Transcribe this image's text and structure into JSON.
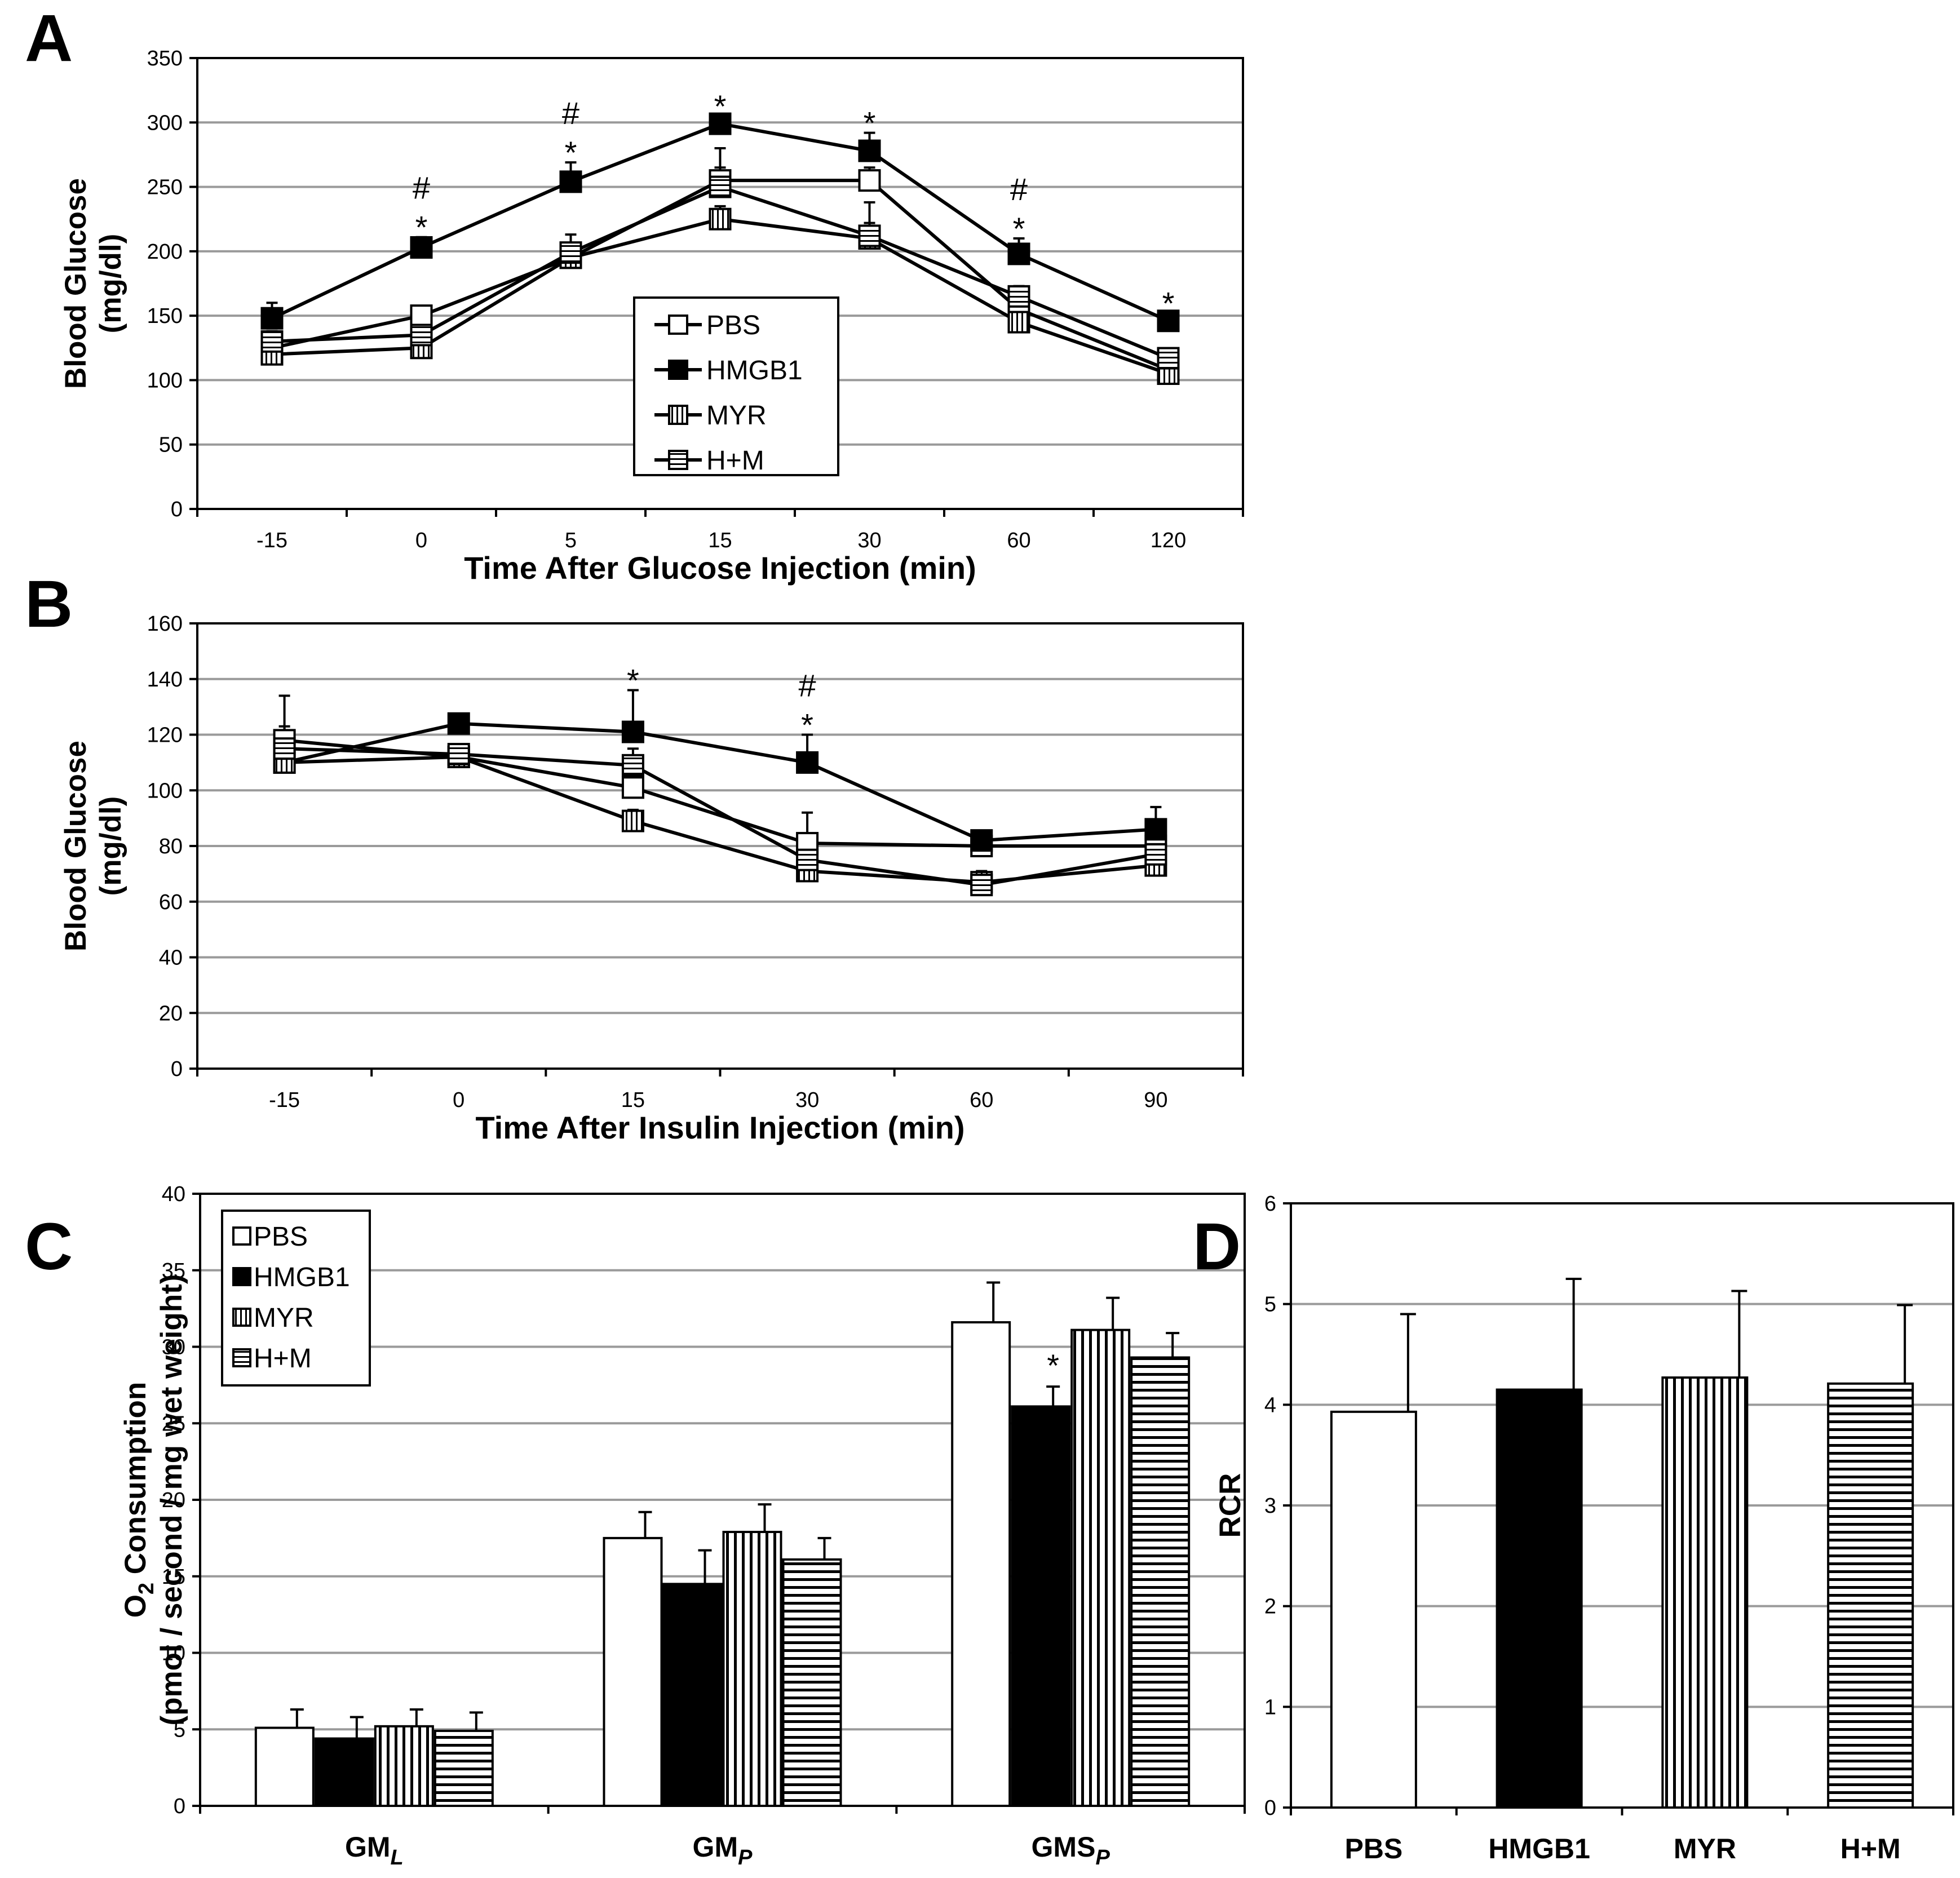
{
  "figure": {
    "panels": [
      "A",
      "B",
      "C",
      "D"
    ]
  },
  "chart_data": [
    {
      "panel": "A",
      "type": "line",
      "xlabel": "Time After Glucose Injection (min)",
      "ylabel_lines": [
        "Blood Glucose",
        "(mg/dl)"
      ],
      "categories": [
        "-15",
        "0",
        "5",
        "15",
        "30",
        "60",
        "120"
      ],
      "ylim": [
        0,
        350
      ],
      "yticks": [
        0,
        50,
        100,
        150,
        200,
        250,
        300,
        350
      ],
      "grid": true,
      "legend": [
        "PBS",
        "HMGB1",
        "MYR",
        "H+M"
      ],
      "series": [
        {
          "name": "PBS",
          "marker": "open",
          "values": [
            125,
            150,
            195,
            255,
            255,
            155,
            108
          ],
          "errors": [
            8,
            6,
            10,
            10,
            10,
            10,
            6
          ]
        },
        {
          "name": "HMGB1",
          "marker": "filled",
          "values": [
            148,
            203,
            254,
            299,
            278,
            198,
            146
          ],
          "errors": [
            12,
            8,
            15,
            6,
            14,
            12,
            6
          ]
        },
        {
          "name": "MYR",
          "marker": "vstripe",
          "values": [
            120,
            125,
            195,
            225,
            210,
            145,
            105
          ],
          "errors": [
            6,
            6,
            8,
            10,
            28,
            8,
            6
          ]
        },
        {
          "name": "H+M",
          "marker": "hstripe",
          "values": [
            130,
            135,
            199,
            250,
            212,
            165,
            117
          ],
          "errors": [
            8,
            8,
            14,
            30,
            10,
            8,
            6
          ]
        }
      ],
      "annotations": [
        {
          "x": "0",
          "labels": [
            "#",
            "*"
          ]
        },
        {
          "x": "5",
          "labels": [
            "#",
            "*"
          ]
        },
        {
          "x": "15",
          "labels": [
            "*"
          ]
        },
        {
          "x": "30",
          "labels": [
            "*"
          ]
        },
        {
          "x": "60",
          "labels": [
            "#",
            "*"
          ]
        },
        {
          "x": "120",
          "labels": [
            "*"
          ]
        }
      ]
    },
    {
      "panel": "B",
      "type": "line",
      "xlabel": "Time After Insulin Injection (min)",
      "ylabel_lines": [
        "Blood Glucose",
        "(mg/dl)"
      ],
      "categories": [
        "-15",
        "0",
        "15",
        "30",
        "60",
        "90"
      ],
      "ylim": [
        0,
        160
      ],
      "yticks": [
        0,
        20,
        40,
        60,
        80,
        100,
        120,
        140,
        160
      ],
      "grid": true,
      "series": [
        {
          "name": "PBS",
          "marker": "open",
          "values": [
            118,
            112,
            101,
            81,
            80,
            80
          ],
          "errors": [
            5,
            3,
            4,
            11,
            4,
            4
          ]
        },
        {
          "name": "HMGB1",
          "marker": "filled",
          "values": [
            110,
            124,
            121,
            110,
            82,
            86
          ],
          "errors": [
            8,
            3,
            15,
            10,
            3,
            8
          ]
        },
        {
          "name": "MYR",
          "marker": "vstripe",
          "values": [
            110,
            112,
            89,
            71,
            67,
            73
          ],
          "errors": [
            4,
            3,
            4,
            4,
            4,
            4
          ]
        },
        {
          "name": "H+M",
          "marker": "hstripe",
          "values": [
            115,
            113,
            109,
            75,
            66,
            77
          ],
          "errors": [
            19,
            3,
            6,
            4,
            4,
            4
          ]
        }
      ],
      "annotations": [
        {
          "x": "15",
          "labels": [
            "*"
          ]
        },
        {
          "x": "30",
          "labels": [
            "#",
            "*"
          ]
        }
      ]
    },
    {
      "panel": "C",
      "type": "bar",
      "ylabel_lines": [
        "O2 Consumption",
        "(pmol / second / mg wet weight)"
      ],
      "categories": [
        {
          "base": "GM",
          "sub": "L"
        },
        {
          "base": "GM",
          "sub": "P"
        },
        {
          "base": "GMS",
          "sub": "P"
        }
      ],
      "ylim": [
        0,
        40
      ],
      "yticks": [
        0,
        5,
        10,
        15,
        20,
        25,
        30,
        35,
        40
      ],
      "grid": true,
      "legend": [
        "PBS",
        "HMGB1",
        "MYR",
        "H+M"
      ],
      "series": [
        {
          "name": "PBS",
          "fill": "open",
          "values": [
            5.1,
            17.5,
            31.6
          ],
          "errors": [
            1.2,
            1.7,
            2.6
          ]
        },
        {
          "name": "HMGB1",
          "fill": "filled",
          "values": [
            4.4,
            14.5,
            26.1
          ],
          "errors": [
            1.4,
            2.2,
            1.3
          ]
        },
        {
          "name": "MYR",
          "fill": "vstripe",
          "values": [
            5.2,
            17.9,
            31.1
          ],
          "errors": [
            1.1,
            1.8,
            2.1
          ]
        },
        {
          "name": "H+M",
          "fill": "hstripe",
          "values": [
            4.9,
            16.1,
            29.3
          ],
          "errors": [
            1.2,
            1.4,
            1.6
          ]
        }
      ],
      "annotations": [
        {
          "category": 2,
          "series": "HMGB1",
          "label": "*"
        }
      ]
    },
    {
      "panel": "D",
      "type": "bar",
      "ylabel": "RCR",
      "categories": [
        "PBS",
        "HMGB1",
        "MYR",
        "H+M"
      ],
      "ylim": [
        0,
        6
      ],
      "yticks": [
        0,
        1,
        2,
        3,
        4,
        5,
        6
      ],
      "grid": true,
      "values": [
        3.93,
        4.15,
        4.27,
        4.21
      ],
      "errors": [
        0.97,
        1.1,
        0.86,
        0.78
      ],
      "fills": [
        "open",
        "filled",
        "vstripe",
        "hstripe"
      ]
    }
  ]
}
